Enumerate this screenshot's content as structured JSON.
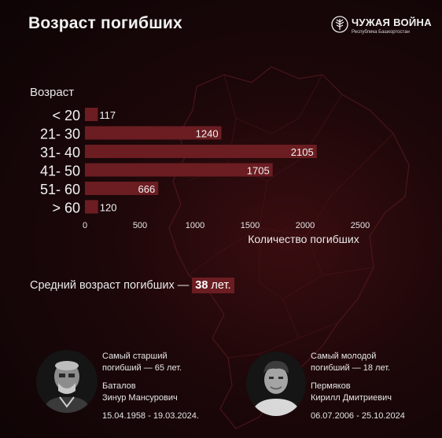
{
  "header": {
    "title": "Возраст погибших",
    "logo_name": "ЧУЖАЯ ВОЙНА",
    "logo_sub": "Республика Башкортостан",
    "logo_icon": "tree-emblem-icon"
  },
  "chart_data": {
    "type": "bar",
    "orientation": "horizontal",
    "title": "",
    "ylabel": "Возраст",
    "xlabel": "Количество погибших",
    "categories": [
      "< 20",
      "21- 30",
      "31- 40",
      "41- 50",
      "51- 60",
      "> 60"
    ],
    "values": [
      117,
      1240,
      2105,
      1705,
      666,
      120
    ],
    "xlim": [
      0,
      2500
    ],
    "xticks": [
      0,
      500,
      1000,
      1500,
      2000,
      2500
    ],
    "bar_color": "#6b1d22",
    "grid": false,
    "legend": "none"
  },
  "summary": {
    "prefix": "Средний возраст погибших —",
    "value": "38",
    "suffix": "лет."
  },
  "oldest": {
    "label_1": "Самый старший",
    "label_2": "погибший — 65 лет.",
    "surname": "Баталов",
    "name": "Зинур Мансурович",
    "dates": "15.04.1958 - 19.03.2024."
  },
  "youngest": {
    "label_1": "Самый молодой",
    "label_2": "погибший — 18 лет.",
    "surname": "Пермяков",
    "name": "Кирилл Дмитриевич",
    "dates": "06.07.2006 - 25.10.2024"
  },
  "colors": {
    "accent": "#6b1d22",
    "map_stroke": "#5a1a1f"
  }
}
